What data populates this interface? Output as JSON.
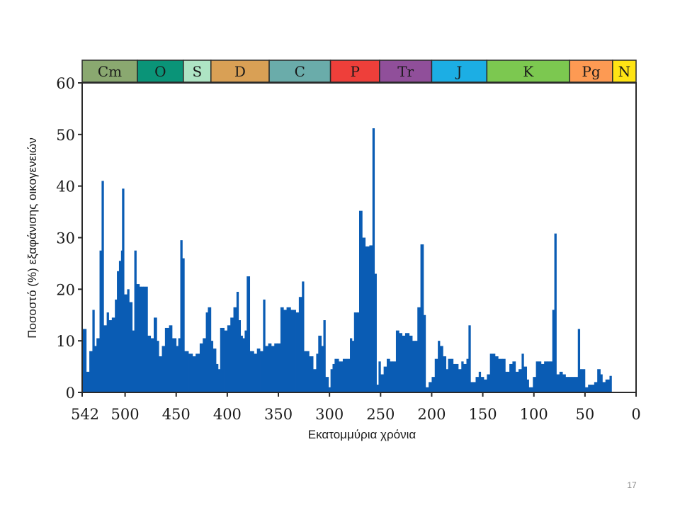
{
  "slide": {
    "page_number": "17"
  },
  "chart_data": {
    "type": "bar",
    "xlabel": "Εκατομμύρια χρόνια",
    "ylabel": "Ποσοστό (%) εξαφάνισης οικογενειών",
    "xlim": [
      542,
      0
    ],
    "ylim": [
      0,
      60
    ],
    "x_ticks": [
      542,
      500,
      450,
      400,
      350,
      300,
      250,
      200,
      150,
      100,
      50,
      0
    ],
    "x_tick_labels": [
      "542",
      "500",
      "450",
      "400",
      "350",
      "300",
      "250",
      "200",
      "150",
      "100",
      "50",
      "0"
    ],
    "y_ticks": [
      0,
      10,
      20,
      30,
      40,
      50,
      60
    ],
    "y_tick_labels": [
      "0",
      "10",
      "20",
      "30",
      "40",
      "50",
      "60"
    ],
    "grid": false,
    "bar_color": "#0a5cb4",
    "periods": [
      {
        "label": "Cm",
        "start": 542,
        "end": 488,
        "color": "#8aa870"
      },
      {
        "label": "O",
        "start": 488,
        "end": 443,
        "color": "#0a9478"
      },
      {
        "label": "S",
        "start": 443,
        "end": 416,
        "color": "#aee4c4"
      },
      {
        "label": "D",
        "start": 416,
        "end": 359,
        "color": "#d9a055"
      },
      {
        "label": "C",
        "start": 359,
        "end": 299,
        "color": "#6aacaa"
      },
      {
        "label": "P",
        "start": 299,
        "end": 251,
        "color": "#ee3f3a"
      },
      {
        "label": "Tr",
        "start": 251,
        "end": 200,
        "color": "#904f9a"
      },
      {
        "label": "J",
        "start": 200,
        "end": 146,
        "color": "#1caee4"
      },
      {
        "label": "K",
        "start": 146,
        "end": 65,
        "color": "#7cc850"
      },
      {
        "label": "Pg",
        "start": 65,
        "end": 23,
        "color": "#fd9a53"
      },
      {
        "label": "N",
        "start": 23,
        "end": 0,
        "color": "#ffe414"
      }
    ],
    "series": [
      {
        "values": [
          [
            542,
            12.3
          ],
          [
            538,
            4
          ],
          [
            535,
            8
          ],
          [
            532,
            16
          ],
          [
            530,
            9
          ],
          [
            528,
            10.5
          ],
          [
            525,
            27.5
          ],
          [
            523,
            41
          ],
          [
            521,
            13
          ],
          [
            518,
            15.5
          ],
          [
            516,
            14
          ],
          [
            513,
            14.5
          ],
          [
            510,
            18
          ],
          [
            508,
            23.5
          ],
          [
            506,
            25.5
          ],
          [
            504,
            27.5
          ],
          [
            503,
            39.5
          ],
          [
            501,
            19
          ],
          [
            498,
            20
          ],
          [
            496,
            17.5
          ],
          [
            493,
            12
          ],
          [
            491,
            27.5
          ],
          [
            489,
            21
          ],
          [
            486,
            20.5
          ],
          [
            484,
            20.5
          ],
          [
            482,
            20.5
          ],
          [
            478,
            11
          ],
          [
            475,
            10.5
          ],
          [
            472,
            14.5
          ],
          [
            469,
            10
          ],
          [
            467,
            7
          ],
          [
            464,
            9
          ],
          [
            461,
            12.5
          ],
          [
            457,
            13
          ],
          [
            454,
            10.5
          ],
          [
            450,
            9
          ],
          [
            448,
            10.5
          ],
          [
            446,
            29.5
          ],
          [
            444,
            26
          ],
          [
            442,
            8
          ],
          [
            438,
            7.5
          ],
          [
            434,
            7
          ],
          [
            431,
            7.5
          ],
          [
            427,
            9.5
          ],
          [
            424,
            10.5
          ],
          [
            421,
            15.5
          ],
          [
            419,
            16.5
          ],
          [
            416,
            10
          ],
          [
            414,
            8.5
          ],
          [
            411,
            5.5
          ],
          [
            409,
            4.5
          ],
          [
            407,
            12.5
          ],
          [
            403,
            12
          ],
          [
            400,
            13
          ],
          [
            397,
            14.5
          ],
          [
            394,
            16.5
          ],
          [
            391,
            19.5
          ],
          [
            389,
            14
          ],
          [
            387,
            11
          ],
          [
            385,
            10.5
          ],
          [
            383,
            12
          ],
          [
            381,
            22.5
          ],
          [
            378,
            8
          ],
          [
            374,
            7.5
          ],
          [
            371,
            8.5
          ],
          [
            368,
            8
          ],
          [
            365,
            18
          ],
          [
            363,
            9
          ],
          [
            360,
            9.5
          ],
          [
            357,
            9
          ],
          [
            354,
            9.5
          ],
          [
            351,
            9.5
          ],
          [
            348,
            16.5
          ],
          [
            345,
            16
          ],
          [
            342,
            16.5
          ],
          [
            338,
            16
          ],
          [
            333,
            15.5
          ],
          [
            330,
            18.5
          ],
          [
            327,
            21.5
          ],
          [
            325,
            8
          ],
          [
            320,
            7
          ],
          [
            316,
            4.5
          ],
          [
            313,
            7.5
          ],
          [
            311,
            11
          ],
          [
            308,
            9
          ],
          [
            306,
            14
          ],
          [
            304,
            3
          ],
          [
            301,
            1
          ],
          [
            299,
            4.5
          ],
          [
            297,
            5.5
          ],
          [
            295,
            6.5
          ],
          [
            291,
            6
          ],
          [
            287,
            6.5
          ],
          [
            283,
            6.5
          ],
          [
            280,
            10.5
          ],
          [
            278,
            10
          ],
          [
            276,
            15.5
          ],
          [
            273,
            15.5
          ],
          [
            271,
            35.2
          ],
          [
            268,
            30
          ],
          [
            265,
            28.3
          ],
          [
            261,
            28.5
          ],
          [
            258,
            51.2
          ],
          [
            256,
            23
          ],
          [
            254,
            1.5
          ],
          [
            252,
            6
          ],
          [
            250,
            3.5
          ],
          [
            247,
            5
          ],
          [
            244,
            6.5
          ],
          [
            241,
            6
          ],
          [
            238,
            6
          ],
          [
            235,
            12
          ],
          [
            232,
            11.5
          ],
          [
            229,
            11
          ],
          [
            226,
            11.5
          ],
          [
            222,
            11
          ],
          [
            219,
            10
          ],
          [
            216,
            10
          ],
          [
            214,
            16.5
          ],
          [
            211,
            28.7
          ],
          [
            208,
            15
          ],
          [
            206,
            1
          ],
          [
            203,
            2
          ],
          [
            200,
            3
          ],
          [
            197,
            6.5
          ],
          [
            194,
            10
          ],
          [
            192,
            9
          ],
          [
            189,
            7
          ],
          [
            186,
            4.5
          ],
          [
            184,
            6.5
          ],
          [
            181,
            6.5
          ],
          [
            179,
            5.5
          ],
          [
            177,
            5.5
          ],
          [
            174,
            4.5
          ],
          [
            171,
            6
          ],
          [
            169,
            5.5
          ],
          [
            166,
            6.5
          ],
          [
            164,
            13
          ],
          [
            162,
            2
          ],
          [
            157,
            3
          ],
          [
            154,
            4
          ],
          [
            152,
            3
          ],
          [
            149,
            2.5
          ],
          [
            146,
            3.5
          ],
          [
            143,
            7.5
          ],
          [
            138,
            7
          ],
          [
            135,
            6.5
          ],
          [
            131,
            6.5
          ],
          [
            128,
            4
          ],
          [
            124,
            5.5
          ],
          [
            121,
            6
          ],
          [
            118,
            4
          ],
          [
            115,
            4.5
          ],
          [
            112,
            7.5
          ],
          [
            110,
            5
          ],
          [
            107,
            2.5
          ],
          [
            105,
            1
          ],
          [
            101,
            3
          ],
          [
            98,
            6
          ],
          [
            96,
            6
          ],
          [
            93,
            5.5
          ],
          [
            90,
            6
          ],
          [
            87,
            6
          ],
          [
            84,
            6
          ],
          [
            82,
            16
          ],
          [
            80,
            30.8
          ],
          [
            78,
            3.5
          ],
          [
            75,
            4
          ],
          [
            72,
            3.5
          ],
          [
            69,
            3
          ],
          [
            66,
            3
          ],
          [
            63,
            3
          ],
          [
            60,
            3
          ],
          [
            57,
            12.3
          ],
          [
            55,
            4.5
          ],
          [
            53,
            4.5
          ],
          [
            50,
            1
          ],
          [
            47,
            1.5
          ],
          [
            44,
            1.5
          ],
          [
            41,
            2
          ],
          [
            38,
            4.5
          ],
          [
            35,
            3.5
          ],
          [
            33,
            2
          ],
          [
            30,
            2.5
          ],
          [
            28,
            2.5
          ],
          [
            26,
            3.2
          ]
        ]
      }
    ]
  }
}
